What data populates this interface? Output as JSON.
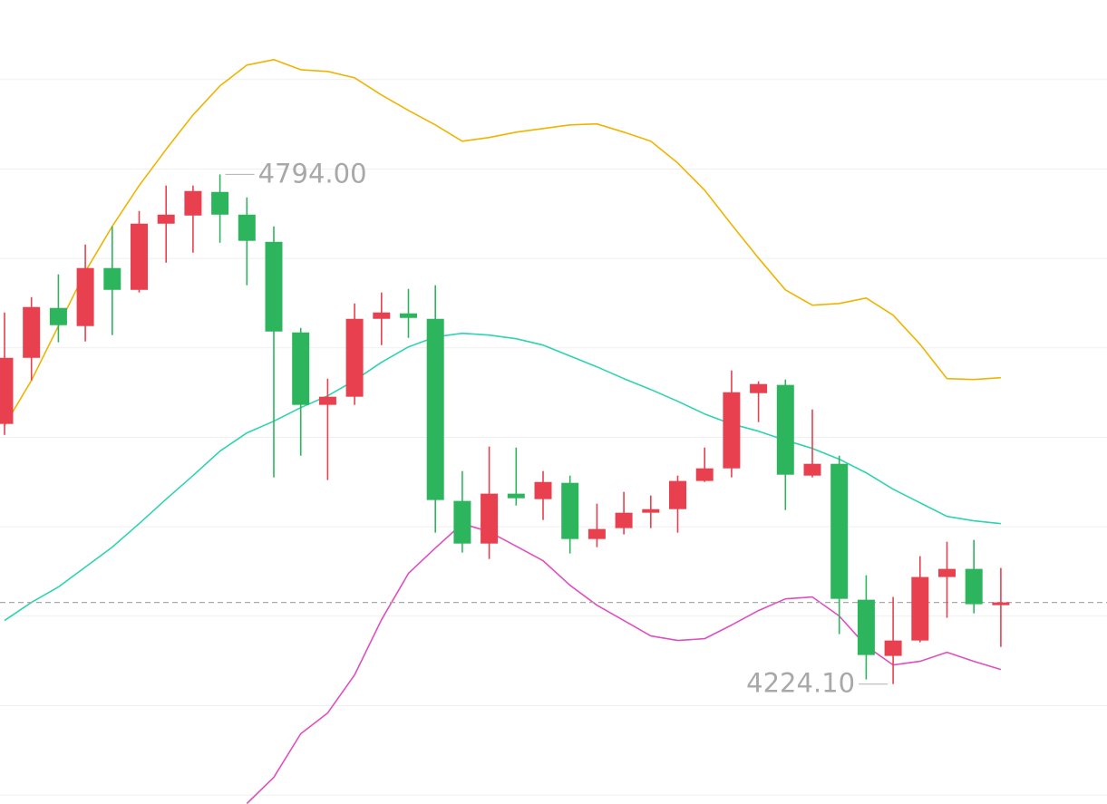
{
  "chart_data": {
    "type": "candlestick",
    "up_color": "#e8404f",
    "down_color": "#2db55d",
    "ylim": [
      4090,
      4989
    ],
    "yticks": [
      4100,
      4200,
      4300,
      4400,
      4500,
      4600,
      4700,
      4800,
      4900
    ],
    "grid": true,
    "open": [
      4515.0,
      4588.9,
      4644.7,
      4624.4,
      4689.3,
      4664.9,
      4738.9,
      4748.0,
      4774.4,
      4749.0,
      4718.6,
      4617.3,
      4536.3,
      4545.4,
      4632.5,
      4638.6,
      4632.5,
      4428.9,
      4381.2,
      4437.0,
      4430.9,
      4449.1,
      4386.3,
      4398.5,
      4415.7,
      4419.7,
      4451.2,
      4465.3,
      4549.4,
      4558.6,
      4457.2,
      4470.4,
      4318.4,
      4255.6,
      4272.8,
      4343.8,
      4352.9,
      4312.3
    ],
    "high": [
      4639.6,
      4656.8,
      4682.2,
      4715.6,
      4735.9,
      4753.1,
      4781.5,
      4781.5,
      4794.0,
      4768.3,
      4735.9,
      4622.4,
      4565.6,
      4649.7,
      4661.9,
      4666.0,
      4670.0,
      4462.3,
      4489.7,
      4488.6,
      4462.3,
      4457.2,
      4425.8,
      4439.0,
      4434.9,
      4457.2,
      4488.6,
      4574.8,
      4562.6,
      4564.6,
      4531.2,
      4479.5,
      4345.8,
      4321.5,
      4367.1,
      4383.3,
      4385.3,
      4353.9
    ],
    "low": [
      4502.8,
      4563.6,
      4606.2,
      4607.2,
      4614.3,
      4661.9,
      4695.3,
      4706.5,
      4717.6,
      4670.0,
      4455.2,
      4479.5,
      4452.2,
      4536.3,
      4603.1,
      4611.2,
      4393.4,
      4371.1,
      4364.0,
      4423.8,
      4407.6,
      4370.1,
      4377.2,
      4391.4,
      4398.5,
      4393.4,
      4450.1,
      4455.2,
      4517.0,
      4418.7,
      4455.2,
      4279.9,
      4229.3,
      4224.1,
      4270.8,
      4298.2,
      4303.2,
      4265.7
    ],
    "close": [
      4588.9,
      4645.7,
      4625.4,
      4689.3,
      4664.9,
      4738.9,
      4749.0,
      4775.4,
      4749.0,
      4719.7,
      4618.3,
      4536.3,
      4545.4,
      4632.5,
      4639.6,
      4633.5,
      4429.9,
      4381.2,
      4437.0,
      4431.9,
      4450.1,
      4386.3,
      4397.5,
      4415.7,
      4419.7,
      4451.2,
      4465.3,
      4550.4,
      4559.6,
      4458.2,
      4470.4,
      4319.4,
      4256.6,
      4272.8,
      4343.8,
      4352.9,
      4313.4,
      4315.4
    ],
    "series": [
      {
        "color": "#f0b400",
        "values": [
          4513.0,
          4563.6,
          4624.4,
          4685.2,
          4735.9,
          4781.5,
          4822.0,
          4860.5,
          4892.9,
          4916.2,
          4922.3,
          4911.1,
          4909.1,
          4902.0,
          4882.8,
          4865.6,
          4849.3,
          4831.1,
          4835.2,
          4841.2,
          4845.3,
          4849.3,
          4850.4,
          4841.2,
          4831.1,
          4806.8,
          4776.4,
          4737.9,
          4700.4,
          4664.9,
          4647.7,
          4649.7,
          4655.8,
          4636.6,
          4604.1,
          4565.6,
          4564.6,
          4566.7
        ]
      },
      {
        "color": "#2ed3b0",
        "values": [
          4295.1,
          4315.4,
          4332.6,
          4354.9,
          4377.2,
          4403.5,
          4430.9,
          4457.2,
          4484.6,
          4504.9,
          4518.0,
          4533.2,
          4546.4,
          4563.6,
          4583.9,
          4601.1,
          4612.3,
          4616.3,
          4614.3,
          4610.2,
          4603.1,
          4591.0,
          4578.8,
          4565.6,
          4553.5,
          4540.3,
          4526.1,
          4515.0,
          4506.9,
          4496.7,
          4487.6,
          4475.5,
          4460.3,
          4442.0,
          4426.8,
          4411.6,
          4406.6,
          4403.5
        ]
      },
      {
        "color": "#de4fc0",
        "values": [
          null,
          null,
          null,
          null,
          null,
          null,
          null,
          null,
          null,
          4090.5,
          4119.8,
          4168.5,
          4191.8,
          4234.3,
          4296.1,
          4347.8,
          4376.2,
          4403.5,
          4394.4,
          4378.2,
          4362.0,
          4334.6,
          4312.3,
          4295.1,
          4277.9,
          4272.8,
          4274.9,
          4290.1,
          4306.3,
          4319.4,
          4321.5,
          4300.2,
          4266.7,
          4245.5,
          4249.5,
          4259.7,
          4249.5,
          4240.4
        ]
      }
    ],
    "annotations": [
      {
        "text": "4794.00",
        "value": 4794.0
      },
      {
        "text": "4224.10",
        "value": 4224.1
      }
    ]
  }
}
